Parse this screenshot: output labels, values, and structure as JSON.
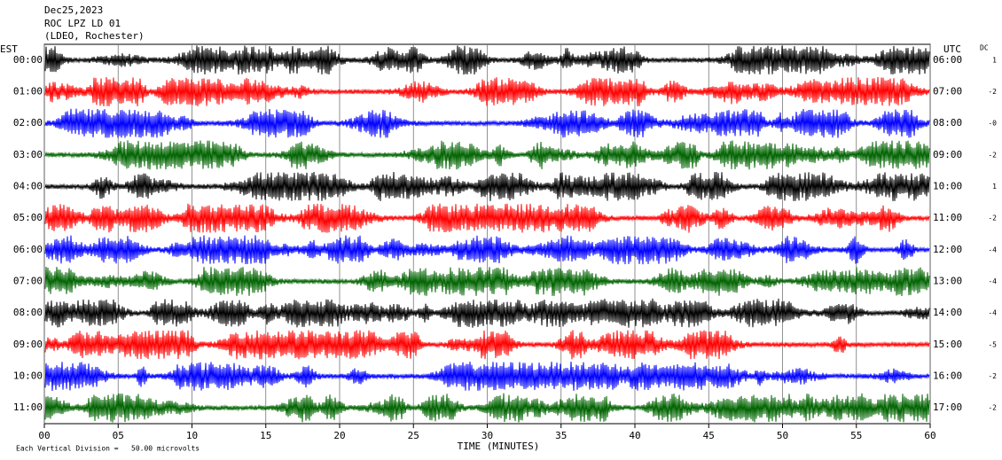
{
  "chart_data": {
    "type": "helicorder",
    "title": [
      "Dec25,2023",
      "ROC LPZ LD 01",
      "(LDEO, Rochester)"
    ],
    "left_header": "EST",
    "right_header": "UTC",
    "dc_header": "DC",
    "xlabel": "TIME (MINUTES)",
    "footnote": "Each Vertical Division =   50.00 microvolts",
    "xlim": [
      0,
      60
    ],
    "xticks": [
      {
        "value": 0,
        "label": "00"
      },
      {
        "value": 5,
        "label": "05"
      },
      10,
      15,
      20,
      25,
      30,
      35,
      40,
      45,
      50,
      55,
      60
    ],
    "grid": true,
    "rows": [
      {
        "est": "00:00",
        "utc": "06:00",
        "dc": "1",
        "color": "#000000"
      },
      {
        "est": "01:00",
        "utc": "07:00",
        "dc": "-2",
        "color": "#ff0000"
      },
      {
        "est": "02:00",
        "utc": "08:00",
        "dc": "-0",
        "color": "#0000ff"
      },
      {
        "est": "03:00",
        "utc": "09:00",
        "dc": "-2",
        "color": "#006400"
      },
      {
        "est": "04:00",
        "utc": "10:00",
        "dc": "1",
        "color": "#000000"
      },
      {
        "est": "05:00",
        "utc": "11:00",
        "dc": "-2",
        "color": "#ff0000"
      },
      {
        "est": "06:00",
        "utc": "12:00",
        "dc": "-4",
        "color": "#0000ff"
      },
      {
        "est": "07:00",
        "utc": "13:00",
        "dc": "-4",
        "color": "#006400"
      },
      {
        "est": "08:00",
        "utc": "14:00",
        "dc": "-4",
        "color": "#000000"
      },
      {
        "est": "09:00",
        "utc": "15:00",
        "dc": "-5",
        "color": "#ff0000"
      },
      {
        "est": "10:00",
        "utc": "16:00",
        "dc": "-2",
        "color": "#0000ff"
      },
      {
        "est": "11:00",
        "utc": "17:00",
        "dc": "-2",
        "color": "#006400"
      }
    ]
  }
}
